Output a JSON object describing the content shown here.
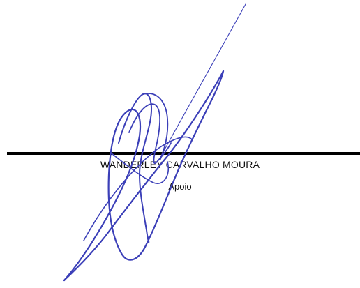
{
  "signature_block": {
    "name": "WANDERLEY CARVALHO MOURA",
    "role": "Apoio",
    "ink_color": "#3b3fb8",
    "line_color": "#000000"
  }
}
